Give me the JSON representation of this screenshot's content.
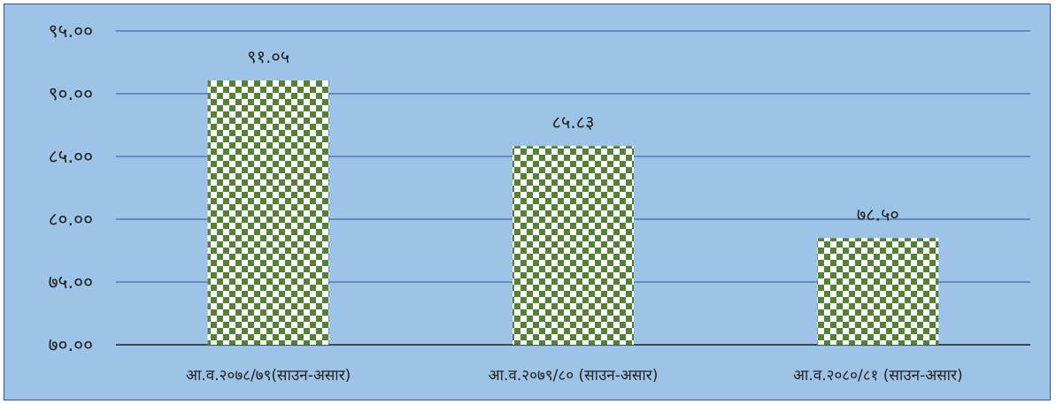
{
  "chart_data": {
    "type": "bar",
    "categories": [
      "आ.व.२०७८/७९(साउन-असार)",
      "आ.व.२०७९/८० (साउन-असार)",
      "आ.व.२०८०/८१ (साउन-असार)"
    ],
    "values": [
      91.05,
      85.83,
      78.5
    ],
    "value_labels": [
      "९१.०५",
      "८५.८३",
      "७८.५०"
    ],
    "ylim": [
      70,
      95
    ],
    "yticks": [
      70,
      75,
      80,
      85,
      90,
      95
    ],
    "ytick_labels": [
      "७०.००",
      "७५.००",
      "८०.००",
      "८५.००",
      "९०.००",
      "९५.००"
    ],
    "grid": true,
    "colors": {
      "background": "#9dc3e6",
      "border": "#2f5597",
      "gridline": "#2f5597",
      "bar_dark": "#548235",
      "bar_light": "#ffffff"
    },
    "bar_fill": "checkerboard"
  }
}
